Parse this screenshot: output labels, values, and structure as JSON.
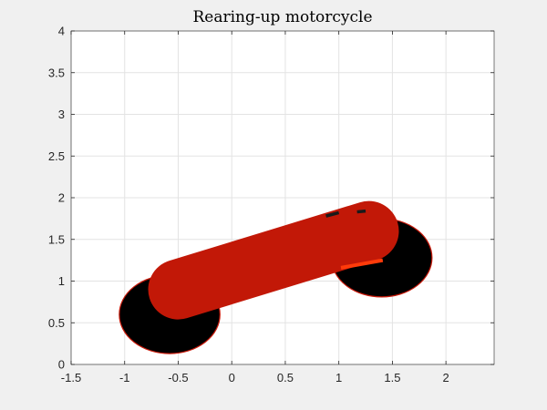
{
  "chart_data": {
    "type": "scatter",
    "title": "Rearing-up motorcycle",
    "xlabel": "",
    "ylabel": "",
    "xlim": [
      -1.5,
      2.45
    ],
    "ylim": [
      0,
      4
    ],
    "xticks": [
      -1.5,
      -1,
      -0.5,
      0,
      0.5,
      1,
      1.5,
      2
    ],
    "xtick_labels": [
      "-1.5",
      "-1",
      "-0.5",
      "0",
      "0.5",
      "1",
      "1.5",
      "2"
    ],
    "yticks": [
      0,
      0.5,
      1,
      1.5,
      2,
      2.5,
      3,
      3.5,
      4
    ],
    "ytick_labels": [
      "0",
      "0.5",
      "1",
      "1.5",
      "2",
      "2.5",
      "3",
      "3.5",
      "4"
    ],
    "grid": true,
    "shapes": {
      "wheels": [
        {
          "name": "rear-wheel",
          "cx": -0.58,
          "cy": 0.6,
          "r": 0.47,
          "fill": "#000000",
          "edge": "#c81a0a"
        },
        {
          "name": "front-wheel",
          "cx": 1.4,
          "cy": 1.28,
          "r": 0.47,
          "fill": "#000000",
          "edge": "#c81a0a"
        }
      ],
      "body": {
        "x1": -0.5,
        "y1": 0.9,
        "x2": 1.28,
        "y2": 1.6,
        "thickness": 0.72,
        "fill": "#c21807"
      },
      "handle_dashes": [
        {
          "x1": 0.88,
          "y1": 1.78,
          "x2": 1.0,
          "y2": 1.82,
          "color": "#1a1a1a"
        },
        {
          "x1": 1.17,
          "y1": 1.83,
          "x2": 1.25,
          "y2": 1.84,
          "color": "#1a1a1a"
        }
      ],
      "accent_line": {
        "x1": 1.02,
        "y1": 1.16,
        "x2": 1.41,
        "y2": 1.25,
        "color": "#ff3b0a"
      }
    }
  }
}
